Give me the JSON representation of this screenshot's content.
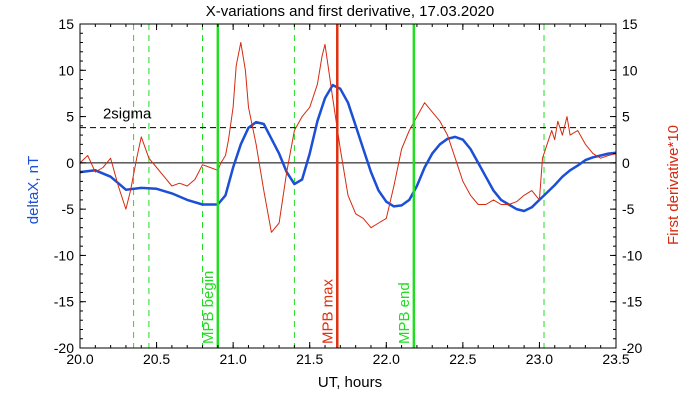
{
  "chart_data": {
    "type": "line",
    "title": "X-variations and first derivative, 17.03.2020",
    "xlabel": "UT, hours",
    "ylabel_left": "deltaX, nT",
    "ylabel_right": "First derivative*10",
    "xlim": [
      20.0,
      23.5
    ],
    "ylim": [
      -20,
      15
    ],
    "xticks": [
      20.0,
      20.5,
      21.0,
      21.5,
      22.0,
      22.5,
      23.0,
      23.5
    ],
    "xtick_labels": [
      "20.0",
      "20.5",
      "21.0",
      "21.5",
      "22.0",
      "22.5",
      "23.0",
      "23.5"
    ],
    "yticks": [
      -20,
      -15,
      -10,
      -5,
      0,
      5,
      10,
      15
    ],
    "ytick_labels": [
      "-20",
      "-15",
      "-10",
      "-5",
      "0",
      "5",
      "10",
      "15"
    ],
    "colors": {
      "deltaX": "#1a4fd6",
      "derivative": "#d42a10",
      "mpb_markers": "#22dd22",
      "mpb_max": "#e03010",
      "sigma": "#000000",
      "axis": "#000000"
    },
    "series": [
      {
        "key": "deltaX",
        "x": [
          20.0,
          20.1,
          20.2,
          20.3,
          20.4,
          20.5,
          20.6,
          20.7,
          20.8,
          20.9,
          20.95,
          21.0,
          21.05,
          21.1,
          21.15,
          21.2,
          21.3,
          21.35,
          21.4,
          21.45,
          21.5,
          21.55,
          21.6,
          21.65,
          21.7,
          21.75,
          21.8,
          21.85,
          21.9,
          21.95,
          22.0,
          22.05,
          22.1,
          22.15,
          22.2,
          22.25,
          22.3,
          22.35,
          22.4,
          22.45,
          22.5,
          22.55,
          22.6,
          22.65,
          22.7,
          22.75,
          22.8,
          22.85,
          22.9,
          22.95,
          23.0,
          23.05,
          23.1,
          23.15,
          23.2,
          23.25,
          23.3,
          23.35,
          23.4,
          23.45,
          23.5
        ],
        "y": [
          -1.0,
          -0.8,
          -1.5,
          -2.9,
          -2.7,
          -2.8,
          -3.3,
          -4.0,
          -4.5,
          -4.5,
          -3.5,
          -0.5,
          2.0,
          3.8,
          4.4,
          4.2,
          1.0,
          -1.0,
          -2.3,
          -1.8,
          1.0,
          4.5,
          7.0,
          8.4,
          8.0,
          6.5,
          4.0,
          1.5,
          -1.0,
          -3.0,
          -4.2,
          -4.7,
          -4.6,
          -4.0,
          -2.5,
          -0.5,
          1.0,
          2.0,
          2.6,
          2.8,
          2.5,
          1.5,
          0.0,
          -1.5,
          -3.0,
          -4.0,
          -4.5,
          -5.0,
          -5.2,
          -4.8,
          -4.0,
          -3.2,
          -2.4,
          -1.5,
          -0.8,
          -0.3,
          0.3,
          0.6,
          0.8,
          1.0,
          1.1
        ]
      },
      {
        "key": "derivative",
        "x": [
          20.0,
          20.05,
          20.1,
          20.15,
          20.2,
          20.25,
          20.3,
          20.33,
          20.37,
          20.4,
          20.45,
          20.5,
          20.55,
          20.6,
          20.65,
          20.7,
          20.75,
          20.8,
          20.85,
          20.9,
          20.92,
          20.95,
          20.97,
          21.0,
          21.02,
          21.05,
          21.08,
          21.1,
          21.15,
          21.2,
          21.25,
          21.3,
          21.35,
          21.4,
          21.45,
          21.5,
          21.52,
          21.55,
          21.58,
          21.6,
          21.65,
          21.7,
          21.75,
          21.8,
          21.85,
          21.9,
          21.95,
          22.0,
          22.05,
          22.1,
          22.15,
          22.2,
          22.25,
          22.3,
          22.35,
          22.4,
          22.45,
          22.5,
          22.55,
          22.6,
          22.65,
          22.7,
          22.75,
          22.8,
          22.85,
          22.9,
          22.95,
          23.0,
          23.02,
          23.05,
          23.08,
          23.1,
          23.12,
          23.15,
          23.18,
          23.2,
          23.25,
          23.3,
          23.35,
          23.4,
          23.45,
          23.5
        ],
        "y": [
          0.0,
          0.8,
          -1.0,
          -0.5,
          0.5,
          -2.5,
          -5.0,
          -3.0,
          0.5,
          2.8,
          0.5,
          -0.5,
          -1.5,
          -2.5,
          -2.2,
          -2.5,
          -1.8,
          -0.2,
          -0.5,
          -0.8,
          0.0,
          0.8,
          2.5,
          6.0,
          10.5,
          13.0,
          10.0,
          6.0,
          2.0,
          -3.0,
          -7.5,
          -6.5,
          -1.0,
          3.5,
          5.0,
          6.0,
          7.0,
          8.5,
          11.5,
          12.8,
          7.0,
          1.5,
          -3.5,
          -5.5,
          -6.0,
          -7.0,
          -6.5,
          -6.0,
          -2.5,
          1.5,
          3.5,
          5.0,
          6.5,
          5.5,
          4.5,
          3.0,
          0.5,
          -2.0,
          -3.5,
          -4.5,
          -4.5,
          -4.0,
          -4.5,
          -4.5,
          -4.2,
          -3.5,
          -3.0,
          -4.0,
          0.5,
          2.0,
          3.5,
          2.5,
          4.5,
          3.0,
          5.0,
          3.0,
          3.5,
          2.0,
          1.0,
          0.5,
          0.8,
          1.0
        ]
      }
    ],
    "sigma_level": 3.8,
    "sigma_label": "2sigma",
    "zero_line": 0,
    "green_dashed_x": [
      20.35,
      20.45,
      20.8,
      21.4,
      23.03
    ],
    "markers": [
      {
        "x": 20.9,
        "label": "MPB begin",
        "kind": "mpb_markers"
      },
      {
        "x": 21.68,
        "label": "MPB max",
        "kind": "mpb_max"
      },
      {
        "x": 22.18,
        "label": "MPB end",
        "kind": "mpb_markers"
      }
    ]
  }
}
